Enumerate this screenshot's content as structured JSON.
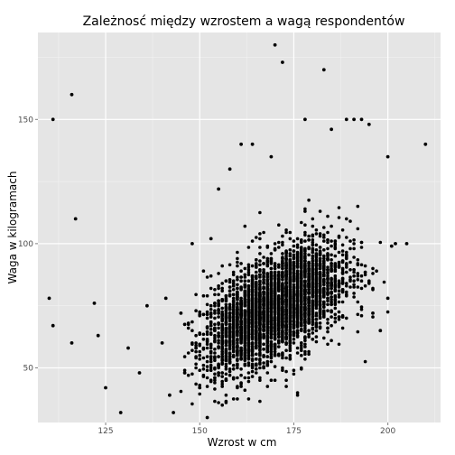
{
  "chart_data": {
    "type": "scatter",
    "title": "Zależnosć między wzrostem a wagą respondentów",
    "xlabel": "Wzrost w cm",
    "ylabel": "Waga w kilogramach",
    "xlim": [
      107,
      214
    ],
    "ylim": [
      28,
      185
    ],
    "x_ticks": [
      125,
      150,
      175,
      200
    ],
    "y_ticks": [
      50,
      100,
      150
    ],
    "grid": true,
    "point_color": "#000000",
    "panel_color": "#e5e5e5",
    "grid_color": "#ffffff",
    "points_outliers": [
      [
        110,
        78
      ],
      [
        111,
        67
      ],
      [
        111,
        150
      ],
      [
        116,
        160
      ],
      [
        116,
        60
      ],
      [
        117,
        110
      ],
      [
        122,
        76
      ],
      [
        123,
        63
      ],
      [
        125,
        42
      ],
      [
        129,
        32
      ],
      [
        131,
        58
      ],
      [
        134,
        48
      ],
      [
        136,
        75
      ],
      [
        140,
        60
      ],
      [
        141,
        78
      ],
      [
        142,
        39
      ],
      [
        143,
        32
      ],
      [
        145,
        72
      ],
      [
        146,
        48
      ],
      [
        148,
        100
      ],
      [
        149,
        58
      ],
      [
        150,
        42
      ],
      [
        152,
        30
      ],
      [
        153,
        102
      ],
      [
        155,
        122
      ],
      [
        158,
        130
      ],
      [
        161,
        140
      ],
      [
        164,
        140
      ],
      [
        169,
        135
      ],
      [
        170,
        180
      ],
      [
        172,
        173
      ],
      [
        178,
        150
      ],
      [
        183,
        170
      ],
      [
        185,
        146
      ],
      [
        189,
        150
      ],
      [
        191,
        150
      ],
      [
        193,
        150
      ],
      [
        195,
        148
      ],
      [
        200,
        135
      ],
      [
        201,
        99
      ],
      [
        202,
        100
      ],
      [
        205,
        100
      ],
      [
        210,
        140
      ],
      [
        200,
        78
      ],
      [
        198,
        65
      ],
      [
        196,
        72
      ]
    ],
    "density_clusters": [
      {
        "cx": 163,
        "cy": 68,
        "sx": 6.5,
        "sy": 10,
        "n": 1200,
        "corr": 0.4
      },
      {
        "cx": 176,
        "cy": 80,
        "sx": 7.0,
        "sy": 11,
        "n": 1300,
        "corr": 0.4
      },
      {
        "cx": 170,
        "cy": 74,
        "sx": 9.5,
        "sy": 14,
        "n": 900,
        "corr": 0.45
      }
    ]
  }
}
